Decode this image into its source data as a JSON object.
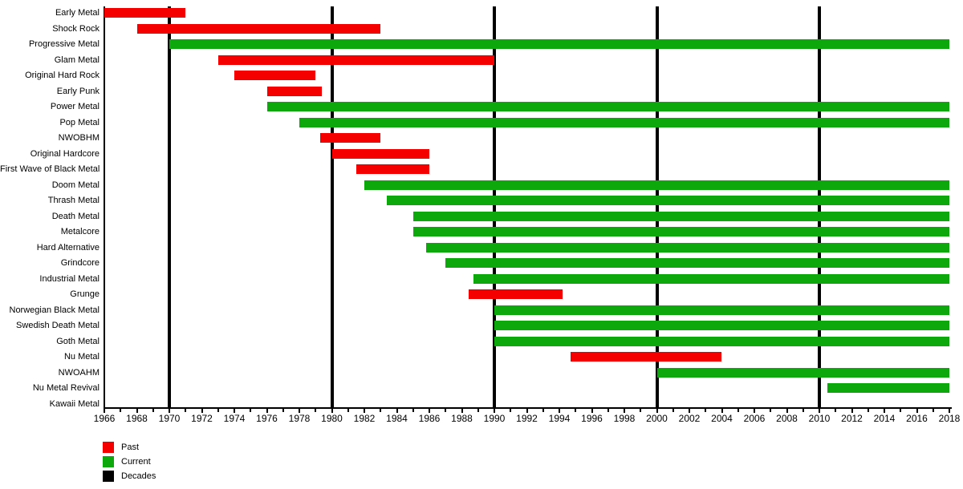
{
  "chart_data": {
    "type": "bar",
    "subtype": "gantt-timeline",
    "title": "",
    "xlabel": "",
    "ylabel": "",
    "axis": {
      "x_min": 1966,
      "x_max": 2018,
      "tick_every_years": 1,
      "label_every_years": 2,
      "tick_labels": [
        1966,
        1968,
        1970,
        1972,
        1974,
        1976,
        1978,
        1980,
        1982,
        1984,
        1986,
        1988,
        1990,
        1992,
        1994,
        1996,
        1998,
        2000,
        2002,
        2004,
        2006,
        2008,
        2010,
        2012,
        2014,
        2016,
        2018
      ]
    },
    "decade_lines": [
      1970,
      1980,
      1990,
      2000,
      2010
    ],
    "colors": {
      "past": "#f40000",
      "current": "#0ca80c",
      "decades": "#000000"
    },
    "legend": {
      "position": "bottom-left",
      "items": [
        {
          "label": "Past",
          "key": "past"
        },
        {
          "label": "Current",
          "key": "current"
        },
        {
          "label": "Decades",
          "key": "decades"
        }
      ]
    },
    "rows": [
      {
        "genre": "Early Metal",
        "status": "past",
        "start": 1966,
        "end": 1971
      },
      {
        "genre": "Shock Rock",
        "status": "past",
        "start": 1968,
        "end": 1983
      },
      {
        "genre": "Progressive Metal",
        "status": "current",
        "start": 1970,
        "end": 2018
      },
      {
        "genre": "Glam Metal",
        "status": "past",
        "start": 1973,
        "end": 1990
      },
      {
        "genre": "Original Hard Rock",
        "status": "past",
        "start": 1974,
        "end": 1979
      },
      {
        "genre": "Early Punk",
        "status": "past",
        "start": 1976,
        "end": 1979.4
      },
      {
        "genre": "Power Metal",
        "status": "current",
        "start": 1976,
        "end": 2018
      },
      {
        "genre": "Pop Metal",
        "status": "current",
        "start": 1978,
        "end": 2018
      },
      {
        "genre": "NWOBHM",
        "status": "past",
        "start": 1979.3,
        "end": 1983
      },
      {
        "genre": "Original Hardcore",
        "status": "past",
        "start": 1980,
        "end": 1986
      },
      {
        "genre": "First Wave of Black Metal",
        "status": "past",
        "start": 1981.5,
        "end": 1986
      },
      {
        "genre": "Doom Metal",
        "status": "current",
        "start": 1982,
        "end": 2018
      },
      {
        "genre": "Thrash Metal",
        "status": "current",
        "start": 1983.4,
        "end": 2018
      },
      {
        "genre": "Death Metal",
        "status": "current",
        "start": 1985,
        "end": 2018
      },
      {
        "genre": "Metalcore",
        "status": "current",
        "start": 1985,
        "end": 2018
      },
      {
        "genre": "Hard Alternative",
        "status": "current",
        "start": 1985.8,
        "end": 2018
      },
      {
        "genre": "Grindcore",
        "status": "current",
        "start": 1987,
        "end": 2018
      },
      {
        "genre": "Industrial Metal",
        "status": "current",
        "start": 1988.7,
        "end": 2018
      },
      {
        "genre": "Grunge",
        "status": "past",
        "start": 1988.4,
        "end": 1994.2
      },
      {
        "genre": "Norwegian Black Metal",
        "status": "current",
        "start": 1990,
        "end": 2018
      },
      {
        "genre": "Swedish Death Metal",
        "status": "current",
        "start": 1990,
        "end": 2018
      },
      {
        "genre": "Goth Metal",
        "status": "current",
        "start": 1990,
        "end": 2018
      },
      {
        "genre": "Nu Metal",
        "status": "past",
        "start": 1994.7,
        "end": 2004
      },
      {
        "genre": "NWOAHM",
        "status": "current",
        "start": 2000,
        "end": 2018
      },
      {
        "genre": "Nu Metal Revival",
        "status": "current",
        "start": 2010.5,
        "end": 2018
      },
      {
        "genre": "Kawaii Metal",
        "status": "none",
        "start": null,
        "end": null
      }
    ]
  }
}
